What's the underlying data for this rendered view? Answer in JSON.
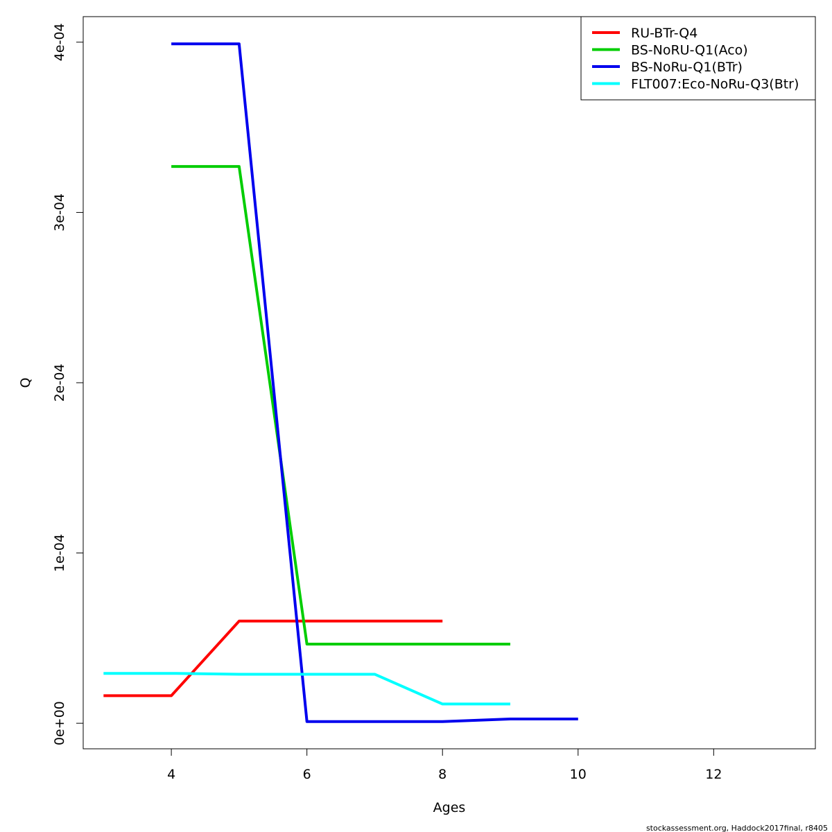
{
  "chart_data": {
    "type": "line",
    "title": "",
    "xlabel": "Ages",
    "ylabel": "Q",
    "xlim": [
      2.7,
      13.5
    ],
    "ylim": [
      -1.5e-05,
      0.000415
    ],
    "xticks": [
      4,
      6,
      8,
      10,
      12
    ],
    "xtick_labels": [
      "4",
      "6",
      "8",
      "10",
      "12"
    ],
    "yticks": [
      0,
      0.0001,
      0.0002,
      0.0003,
      0.0004
    ],
    "ytick_labels": [
      "0e+00",
      "1e-04",
      "2e-04",
      "3e-04",
      "4e-04"
    ],
    "grid": false,
    "legend_position": "top-right",
    "series": [
      {
        "name": "RU-BTr-Q4",
        "color": "#ff0000",
        "x": [
          3,
          4,
          5,
          6,
          7,
          8
        ],
        "y": [
          1.62e-05,
          1.62e-05,
          6e-05,
          6e-05,
          6e-05,
          6e-05
        ]
      },
      {
        "name": "BS-NoRU-Q1(Aco)",
        "color": "#00cd00",
        "x": [
          4,
          5,
          6,
          7,
          8,
          9
        ],
        "y": [
          0.000327,
          0.000327,
          4.65e-05,
          4.65e-05,
          4.65e-05,
          4.65e-05
        ]
      },
      {
        "name": "BS-NoRu-Q1(BTr)",
        "color": "#0000ee",
        "x": [
          4,
          5,
          6,
          7,
          8,
          9,
          10
        ],
        "y": [
          0.000399,
          0.000399,
          1e-06,
          1e-06,
          1e-06,
          2.5e-06,
          2.5e-06
        ]
      },
      {
        "name": "FLT007:Eco-NoRu-Q3(Btr)",
        "color": "#00ffff",
        "x": [
          3,
          4,
          5,
          6,
          7,
          8,
          9
        ],
        "y": [
          2.93e-05,
          2.93e-05,
          2.88e-05,
          2.88e-05,
          2.88e-05,
          1.13e-05,
          1.13e-05
        ]
      }
    ]
  },
  "footer": "stockassessment.org, Haddock2017final, r8405"
}
